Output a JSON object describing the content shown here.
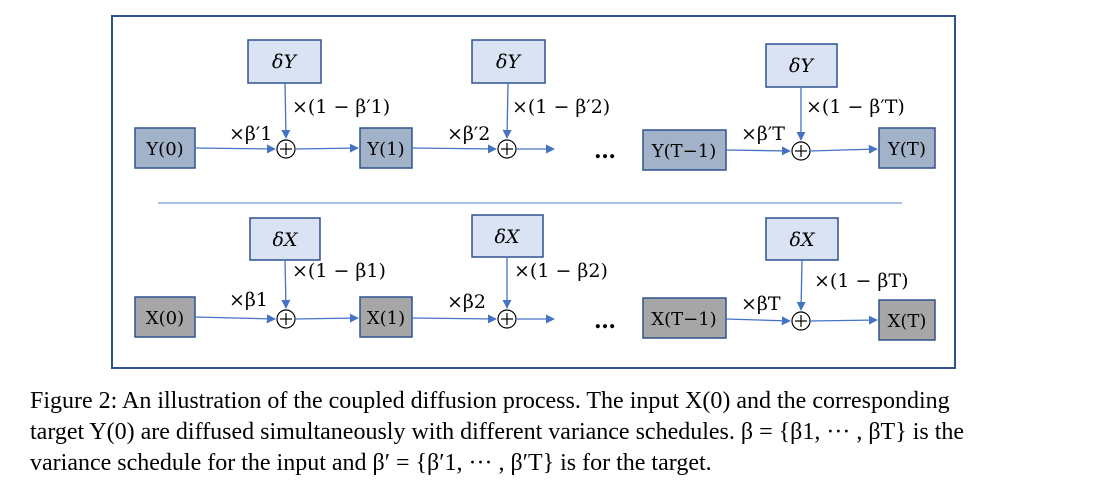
{
  "diagram": {
    "y_row": {
      "states": [
        "Y(0)",
        "Y(1)",
        "Y(T−1)",
        "Y(T)"
      ],
      "noise": [
        "δY",
        "δY",
        "δY"
      ],
      "mix": [
        "×(1 − β′1)",
        "×(1 − β′2)",
        "×(1 − β′T)"
      ],
      "scale": [
        "×β′1",
        "×β′2",
        "×β′T"
      ]
    },
    "x_row": {
      "states": [
        "X(0)",
        "X(1)",
        "X(T−1)",
        "X(T)"
      ],
      "noise": [
        "δX",
        "δX",
        "δX"
      ],
      "mix": [
        "×(1 − β1)",
        "×(1 − β2)",
        "×(1 − βT)"
      ],
      "scale": [
        "×β1",
        "×β2",
        "×βT"
      ]
    },
    "ellipsis": "…",
    "colors": {
      "y_state": "#a2b2c9",
      "x_state": "#a6a6a6",
      "noise_box": "#dae3f3",
      "arrow": "#4472c4",
      "frame": "#2f528f"
    }
  },
  "caption": {
    "line1": "Figure 2: An illustration of the coupled diffusion process. The input X(0) and the corresponding",
    "line2": "target Y(0) are diffused simultaneously with different variance schedules. β = {β1, ··· , βT} is the",
    "line3": "variance schedule for the input and β′ = {β′1, ··· , β′T} is for the target."
  }
}
